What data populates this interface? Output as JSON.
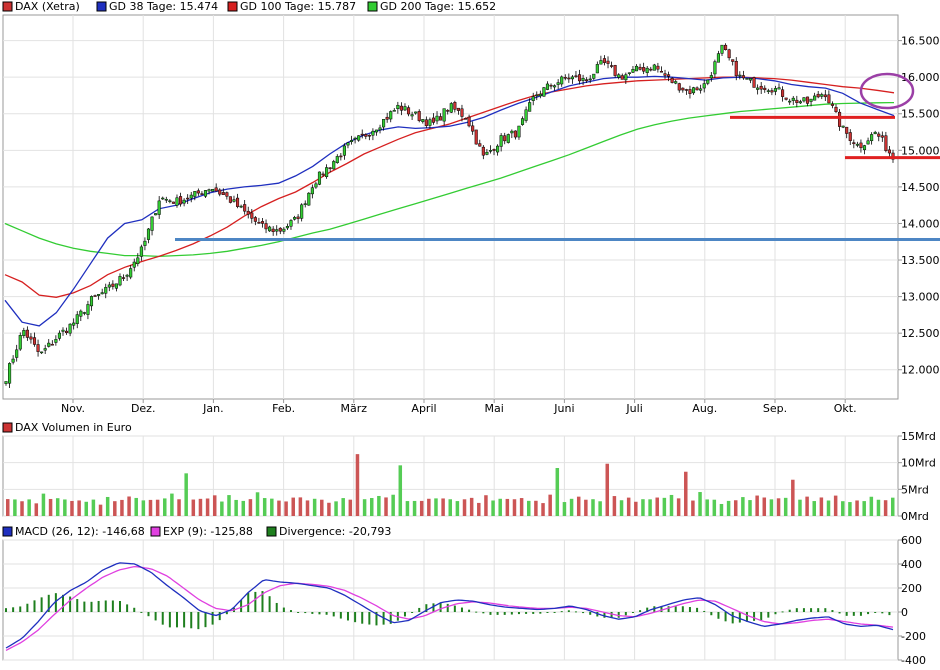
{
  "chart_data": [
    {
      "type": "candlestick",
      "panel": "price",
      "legend": [
        {
          "label": "DAX (Xetra)",
          "color": "#cc3333"
        },
        {
          "label": "GD 38 Tage: 15.474",
          "color": "#1f2fbf"
        },
        {
          "label": "GD 100 Tage: 15.787",
          "color": "#d62020"
        },
        {
          "label": "GD 200 Tage: 15.652",
          "color": "#33cc33"
        }
      ],
      "y_ticks": [
        "16.500",
        "16.000",
        "15.500",
        "15.000",
        "14.500",
        "14.000",
        "13.500",
        "13.000",
        "12.500",
        "12.000"
      ],
      "ylim": [
        11600,
        16850
      ],
      "x_ticks": [
        "Nov.",
        "Dez.",
        "Jan.",
        "Feb.",
        "März",
        "April",
        "Mai",
        "Juni",
        "Juli",
        "Aug.",
        "Sep.",
        "Okt."
      ],
      "close": [
        11900,
        12550,
        12200,
        12450,
        12650,
        12950,
        13100,
        13300,
        13650,
        14350,
        14300,
        14380,
        14500,
        14350,
        14150,
        13950,
        13900,
        14050,
        14550,
        14800,
        15050,
        15200,
        15380,
        15600,
        15480,
        15350,
        15600,
        15450,
        14900,
        15150,
        15250,
        15750,
        15900,
        16000,
        15950,
        16200,
        16000,
        16100,
        16150,
        15950,
        15800,
        15900,
        16400,
        16000,
        15900,
        15850,
        15700,
        15650,
        15800,
        15300,
        15050,
        15250,
        14900
      ],
      "gd38": [
        12950,
        12650,
        12600,
        12780,
        13100,
        13450,
        13800,
        14000,
        14050,
        14200,
        14250,
        14340,
        14420,
        14470,
        14500,
        14520,
        14550,
        14650,
        14780,
        14950,
        15100,
        15210,
        15280,
        15320,
        15300,
        15310,
        15330,
        15380,
        15450,
        15550,
        15640,
        15720,
        15800,
        15880,
        15930,
        15980,
        16000,
        16000,
        16010,
        16000,
        15980,
        15960,
        15990,
        16000,
        15980,
        15950,
        15900,
        15870,
        15850,
        15780,
        15650,
        15560,
        15474
      ],
      "gd100": [
        13300,
        13200,
        13020,
        12990,
        13050,
        13150,
        13300,
        13400,
        13480,
        13550,
        13630,
        13720,
        13830,
        13950,
        14100,
        14230,
        14340,
        14430,
        14560,
        14700,
        14820,
        14950,
        15050,
        15150,
        15240,
        15300,
        15360,
        15440,
        15520,
        15600,
        15680,
        15750,
        15800,
        15840,
        15880,
        15910,
        15930,
        15950,
        15960,
        15970,
        15980,
        15990,
        16000,
        16000,
        15990,
        15980,
        15960,
        15930,
        15900,
        15870,
        15850,
        15820,
        15787
      ],
      "gd200": [
        14000,
        13900,
        13800,
        13720,
        13660,
        13620,
        13590,
        13560,
        13560,
        13550,
        13560,
        13570,
        13590,
        13620,
        13660,
        13700,
        13750,
        13810,
        13870,
        13920,
        13990,
        14060,
        14130,
        14200,
        14270,
        14340,
        14410,
        14480,
        14550,
        14620,
        14700,
        14780,
        14860,
        14940,
        15030,
        15120,
        15210,
        15290,
        15350,
        15400,
        15440,
        15470,
        15500,
        15530,
        15550,
        15570,
        15590,
        15610,
        15630,
        15640,
        15645,
        15650,
        15652
      ],
      "annotations": {
        "support_line_blue": 13780,
        "red_line_upper": 15450,
        "red_line_lower": 14900
      },
      "colors": {
        "up": "#33cc33",
        "down": "#cc3333",
        "support": "#4d86c4",
        "resistance": "#e02020",
        "ellipse": "#9b3fa6"
      }
    },
    {
      "type": "bar",
      "panel": "volume",
      "legend": [
        {
          "label": "DAX Volumen in Euro",
          "color": "#cc3333"
        }
      ],
      "y_ticks": [
        "15Mrd",
        "10Mrd",
        "5Mrd",
        "0Mrd"
      ],
      "ylim": [
        0,
        15
      ],
      "values": [
        3.1,
        2.8,
        3.0,
        3.4,
        2.6,
        3.9,
        3.0,
        3.2,
        3.5,
        2.9,
        3.3,
        2.7,
        3.0,
        2.5,
        3.8,
        3.1,
        2.9,
        3.3,
        3.6,
        3.0,
        3.2,
        2.8,
        3.4,
        4.1,
        3.0,
        3.5,
        2.9,
        3.2,
        3.3,
        3.7,
        3.1,
        3.6,
        3.0,
        2.8,
        2.9,
        4.3,
        3.2,
        3.0,
        2.6,
        2.7,
        3.1,
        3.3,
        2.9,
        3.6,
        3.4,
        2.8,
        3.0,
        3.2,
        3.3,
        2.9,
        3.5,
        3.1,
        3.4,
        3.2,
        3.8,
        2.7,
        3.0,
        3.1,
        2.9,
        3.6,
        3.3,
        3.0
      ],
      "spikes": [
        {
          "index": 25,
          "value": 8.0
        },
        {
          "index": 49,
          "value": 11.6
        },
        {
          "index": 55,
          "value": 9.5
        },
        {
          "index": 77,
          "value": 9.0
        },
        {
          "index": 84,
          "value": 9.8
        },
        {
          "index": 95,
          "value": 8.3
        },
        {
          "index": 110,
          "value": 6.8
        }
      ],
      "colors": {
        "up": "#55cc55",
        "down": "#cc5555"
      }
    },
    {
      "type": "line",
      "panel": "macd",
      "legend": [
        {
          "label": "MACD (26, 12): -146,68",
          "color": "#1f2fbf"
        },
        {
          "label": "EXP (9): -125,88",
          "color": "#e040e0"
        },
        {
          "label": "Divergence: -20,793",
          "color": "#1e7f1e"
        }
      ],
      "y_ticks": [
        "600",
        "400",
        "200",
        "0",
        "-200",
        "-400"
      ],
      "ylim": [
        -400,
        600
      ],
      "macd": [
        -300,
        -220,
        -80,
        80,
        180,
        250,
        350,
        410,
        400,
        330,
        220,
        120,
        10,
        -30,
        20,
        160,
        270,
        250,
        240,
        220,
        200,
        140,
        60,
        -20,
        -90,
        -70,
        10,
        80,
        100,
        90,
        60,
        40,
        30,
        20,
        30,
        50,
        20,
        -30,
        -60,
        -40,
        20,
        60,
        100,
        120,
        60,
        -30,
        -80,
        -120,
        -100,
        -70,
        -50,
        -40,
        -100,
        -120,
        -110,
        -146.68
      ],
      "exp": [
        -320,
        -250,
        -150,
        -20,
        100,
        200,
        290,
        350,
        380,
        360,
        300,
        200,
        100,
        30,
        10,
        60,
        160,
        220,
        240,
        230,
        215,
        180,
        120,
        50,
        -30,
        -60,
        -30,
        30,
        70,
        85,
        75,
        55,
        40,
        30,
        30,
        40,
        30,
        0,
        -30,
        -40,
        -10,
        30,
        70,
        100,
        90,
        30,
        -30,
        -80,
        -100,
        -90,
        -70,
        -60,
        -80,
        -100,
        -110,
        -125.88
      ],
      "colors": {
        "macd": "#1f2fbf",
        "exp": "#e040e0",
        "divergence": "#1e7f1e"
      }
    }
  ]
}
